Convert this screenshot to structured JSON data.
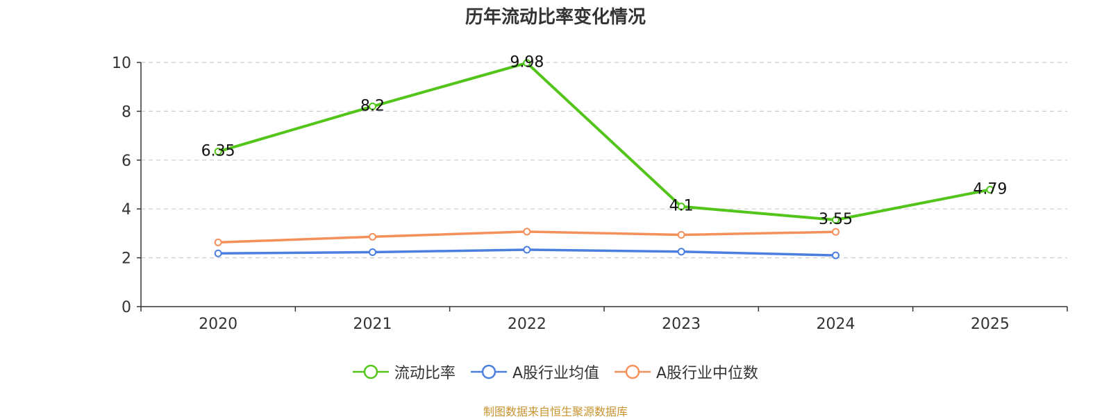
{
  "chart_data": {
    "type": "line",
    "title": "历年流动比率变化情况",
    "categories": [
      "2020",
      "2021",
      "2022",
      "2023",
      "2024",
      "2025"
    ],
    "ylim": [
      0,
      10
    ],
    "yticks": [
      0,
      2,
      4,
      6,
      8,
      10
    ],
    "ytick_labels": [
      "0",
      "2",
      "4",
      "6",
      "8",
      "10"
    ],
    "grid": true,
    "legend_position": "bottom",
    "series": [
      {
        "name": "流动比率",
        "color": "#52c41a",
        "values": [
          6.35,
          8.2,
          9.98,
          4.1,
          3.55,
          4.79
        ],
        "labels": [
          "6.35",
          "8.2",
          "9.98",
          "4.1",
          "3.55",
          "4.79"
        ]
      },
      {
        "name": "A股行业均值",
        "color": "#4a7fe0",
        "values": [
          2.18,
          2.23,
          2.33,
          2.25,
          2.1,
          null
        ],
        "labels": []
      },
      {
        "name": "A股行业中位数",
        "color": "#f5905a",
        "values": [
          2.63,
          2.86,
          3.07,
          2.94,
          3.06,
          null
        ],
        "labels": []
      }
    ]
  },
  "footer": {
    "text": "制图数据来自恒生聚源数据库",
    "color": "#c8942f"
  }
}
